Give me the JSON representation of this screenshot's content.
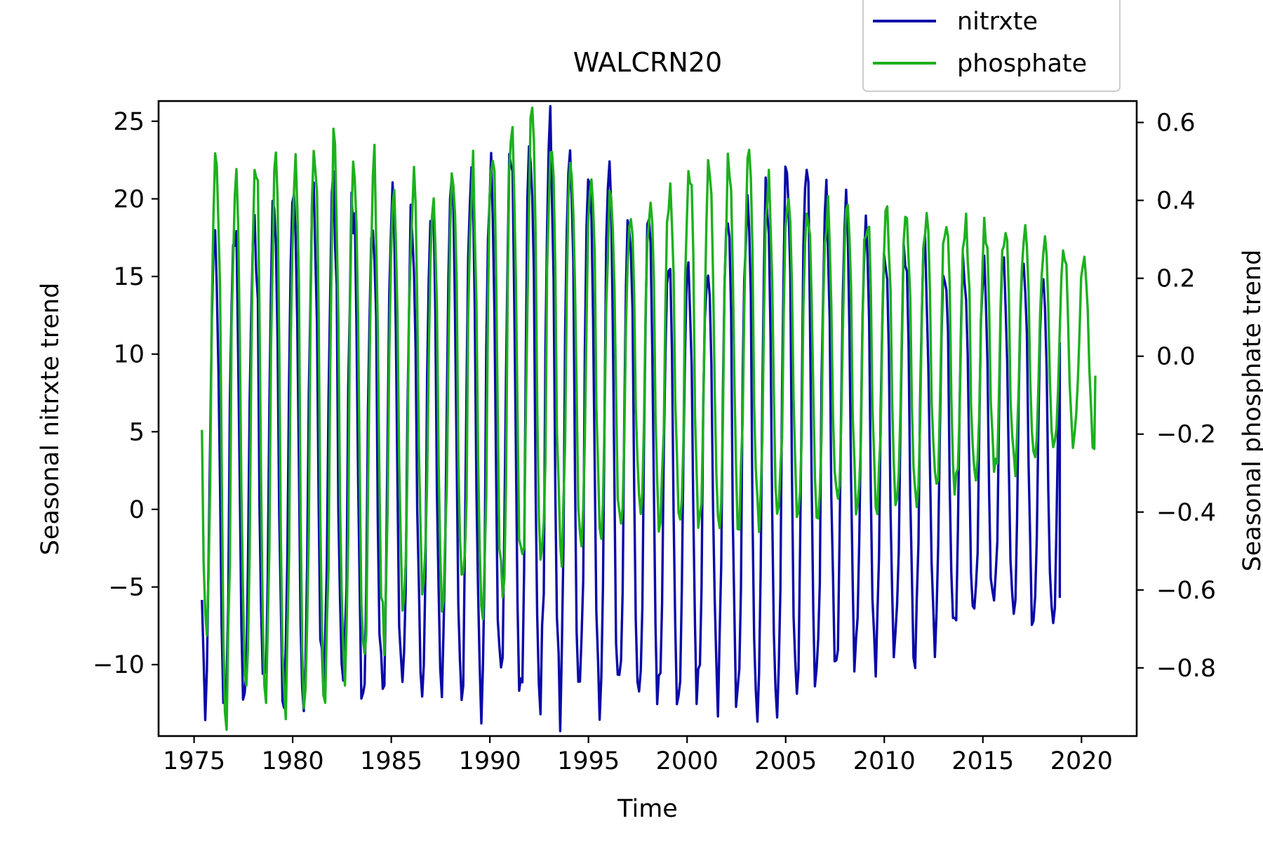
{
  "chart_data": {
    "type": "line",
    "title": "WALCRN20",
    "xlabel": "Time",
    "ylabel_left": "Seasonal nitrxte trend",
    "ylabel_right": "Seasonal phosphate trend",
    "xlim": [
      1973.2,
      2022.8
    ],
    "ylim_left": [
      -14.6,
      26.3
    ],
    "ylim_right": [
      -0.975,
      0.655
    ],
    "x_ticks": [
      1975,
      1980,
      1985,
      1990,
      1995,
      2000,
      2005,
      2010,
      2015,
      2020
    ],
    "y_left_ticks": [
      -10,
      -5,
      0,
      5,
      10,
      15,
      20,
      25
    ],
    "y_right_ticks": [
      -0.8,
      -0.6,
      -0.4,
      -0.2,
      0.0,
      0.2,
      0.4,
      0.6
    ],
    "y_left_tick_labels": [
      "−10",
      "−5",
      "0",
      "5",
      "10",
      "15",
      "20",
      "25"
    ],
    "y_right_tick_labels": [
      "−0.8",
      "−0.6",
      "−0.4",
      "−0.2",
      "0.0",
      "0.2",
      "0.4",
      "0.6"
    ],
    "grid": false,
    "legend_position": "top-right, above plot area",
    "series": [
      {
        "name": "nitrxte",
        "axis": "left",
        "color": "#0a0aa8",
        "description": "seasonal cycle, one peak per year",
        "x_start": 1975.4,
        "x_end": 2018.9,
        "points_per_year": 12,
        "annual_peaks": [
          17.6,
          18.8,
          19.4,
          19.8,
          19.6,
          19.4,
          20.5,
          19.6,
          19.2,
          19.4,
          19.4,
          20.1,
          20.5,
          21.3,
          22.5,
          23.6,
          24.5,
          24.5,
          24.1,
          23.0,
          21.5,
          19.6,
          18.0,
          16.1,
          15.9,
          16.7,
          18.4,
          19.8,
          20.9,
          22.1,
          22.3,
          20.5,
          19.0,
          17.8,
          17.1,
          16.7,
          16.3,
          16.1,
          15.9,
          15.7,
          15.7,
          15.5,
          15.7,
          15.7
        ],
        "annual_troughs": [
          -12.1,
          -12.3,
          -12.1,
          -12.0,
          -11.8,
          -11.8,
          -11.7,
          -11.5,
          -11.7,
          -11.9,
          -11.8,
          -11.7,
          -11.8,
          -11.9,
          -11.8,
          -12.0,
          -12.2,
          -12.3,
          -12.5,
          -12.6,
          -12.5,
          -12.3,
          -12.0,
          -11.9,
          -11.8,
          -11.9,
          -12.0,
          -11.9,
          -11.8,
          -11.7,
          -11.6,
          -11.2,
          -10.4,
          -9.8,
          -9.6,
          -9.4,
          -9.0,
          -8.6,
          -8.2,
          -7.6,
          -7.0,
          -6.8,
          -7.0,
          -6.8
        ],
        "final_value": -5.7
      },
      {
        "name": "phosphate",
        "axis": "right",
        "color": "#1db01d",
        "description": "seasonal cycle, one peak per year",
        "x_start": 1975.4,
        "x_end": 2020.7,
        "points_per_year": 12,
        "annual_peaks": [
          0.51,
          0.52,
          0.52,
          0.5,
          0.53,
          0.53,
          0.53,
          0.49,
          0.48,
          0.47,
          0.45,
          0.43,
          0.44,
          0.47,
          0.52,
          0.6,
          0.6,
          0.58,
          0.52,
          0.48,
          0.41,
          0.37,
          0.4,
          0.44,
          0.47,
          0.49,
          0.49,
          0.49,
          0.45,
          0.39,
          0.37,
          0.37,
          0.37,
          0.36,
          0.36,
          0.36,
          0.35,
          0.35,
          0.34,
          0.33,
          0.32,
          0.31,
          0.28,
          0.26,
          0.25,
          0.25
        ],
        "annual_troughs": [
          -0.67,
          -0.89,
          -0.87,
          -0.89,
          -0.9,
          -0.9,
          -0.89,
          -0.8,
          -0.77,
          -0.72,
          -0.66,
          -0.64,
          -0.63,
          -0.62,
          -0.62,
          -0.62,
          -0.56,
          -0.54,
          -0.5,
          -0.48,
          -0.45,
          -0.43,
          -0.42,
          -0.42,
          -0.42,
          -0.41,
          -0.41,
          -0.41,
          -0.41,
          -0.4,
          -0.4,
          -0.4,
          -0.39,
          -0.38,
          -0.38,
          -0.37,
          -0.36,
          -0.35,
          -0.34,
          -0.32,
          -0.3,
          -0.28,
          -0.26,
          -0.24,
          -0.22,
          -0.22
        ],
        "final_value": -0.05
      }
    ]
  }
}
